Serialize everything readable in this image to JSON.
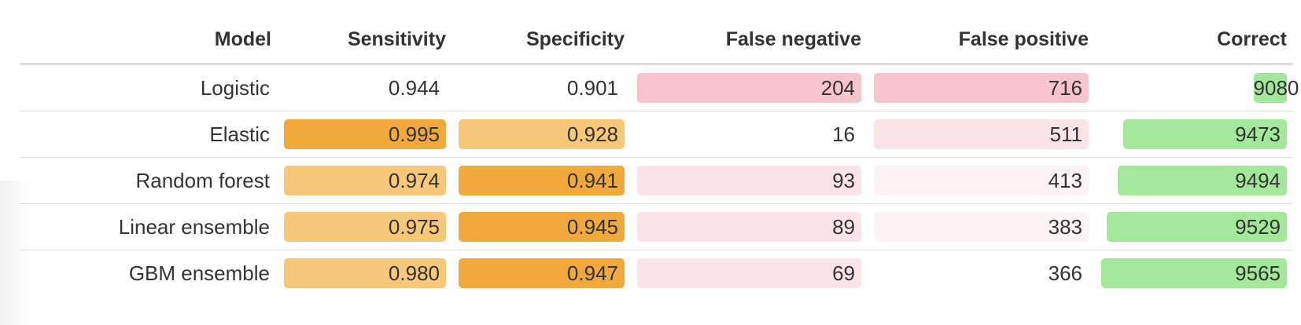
{
  "table": {
    "headers": [
      "Model",
      "Sensitivity",
      "Specificity",
      "False negative",
      "False positive",
      "Correct"
    ],
    "rows": [
      {
        "model": "Logistic",
        "sensitivity": "0.944",
        "specificity": "0.901",
        "false_negative": "204",
        "false_positive": "716",
        "correct": "9080"
      },
      {
        "model": "Elastic",
        "sensitivity": "0.995",
        "specificity": "0.928",
        "false_negative": "16",
        "false_positive": "511",
        "correct": "9473"
      },
      {
        "model": "Random forest",
        "sensitivity": "0.974",
        "specificity": "0.941",
        "false_negative": "93",
        "false_positive": "413",
        "correct": "9494"
      },
      {
        "model": "Linear ensemble",
        "sensitivity": "0.975",
        "specificity": "0.945",
        "false_negative": "89",
        "false_positive": "383",
        "correct": "9529"
      },
      {
        "model": "GBM ensemble",
        "sensitivity": "0.980",
        "specificity": "0.947",
        "false_negative": "69",
        "false_positive": "366",
        "correct": "9565"
      }
    ]
  },
  "colors": {
    "orange_strong": "#f2a93b",
    "orange_light": "#f6c877",
    "pink_strong": "#f5c4cc",
    "pink_mid": "#fbe4e7",
    "pink_faint": "#fdf3f4",
    "green": "#a3e89a"
  },
  "cell_styles": [
    {
      "sensitivity": "",
      "specificity": "",
      "false_negative": "pink_strong",
      "false_positive": "pink_strong",
      "correct_bar_fraction": 0.18
    },
    {
      "sensitivity": "orange_strong",
      "specificity": "orange_light",
      "false_negative": "",
      "false_positive": "pink_mid",
      "correct_bar_fraction": 0.88
    },
    {
      "sensitivity": "orange_light",
      "specificity": "orange_strong",
      "false_negative": "pink_mid",
      "false_positive": "pink_faint",
      "correct_bar_fraction": 0.91
    },
    {
      "sensitivity": "orange_light",
      "specificity": "orange_strong",
      "false_negative": "pink_mid",
      "false_positive": "pink_faint",
      "correct_bar_fraction": 0.97
    },
    {
      "sensitivity": "orange_light",
      "specificity": "orange_strong",
      "false_negative": "pink_mid",
      "false_positive": "",
      "correct_bar_fraction": 1.0
    }
  ]
}
